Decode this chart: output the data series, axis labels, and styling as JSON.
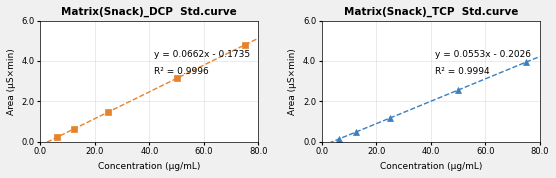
{
  "dcp": {
    "title": "Matrix(Snack)_DCP  Std.curve",
    "slope": 0.0662,
    "intercept": -0.1735,
    "r2": 0.9996,
    "eq_text": "y = 0.0662x - 0.1735",
    "r2_text": "R² = 0.9996",
    "x_data": [
      6.25,
      12.5,
      25.0,
      50.0,
      75.0
    ],
    "color": "#E8822A",
    "marker": "s",
    "markersize": 5
  },
  "tcp": {
    "title": "Matrix(Snack)_TCP  Std.curve",
    "slope": 0.0553,
    "intercept": -0.2026,
    "r2": 0.9994,
    "eq_text": "y = 0.0553x - 0.2026",
    "r2_text": "R² = 0.9994",
    "x_data": [
      6.25,
      12.5,
      25.0,
      50.0,
      75.0
    ],
    "color": "#3A7EBF",
    "marker": "^",
    "markersize": 5
  },
  "xlabel": "Concentration (μg/mL)",
  "ylabel": "Area (μS×min)",
  "xlim": [
    0.0,
    80.0
  ],
  "ylim": [
    0.0,
    6.0
  ],
  "xticks": [
    0.0,
    20.0,
    40.0,
    60.0,
    80.0
  ],
  "yticks": [
    0.0,
    2.0,
    4.0,
    6.0
  ],
  "background_color": "#ffffff",
  "fig_bg": "#f0f0f0"
}
